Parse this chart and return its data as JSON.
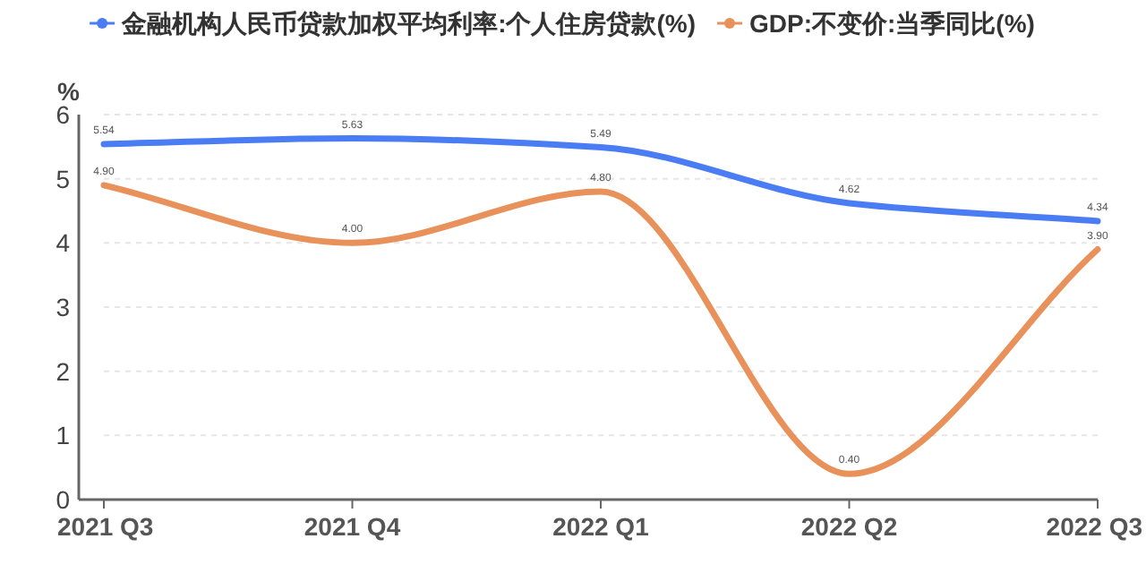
{
  "chart_data": {
    "type": "line",
    "ylabel": "%",
    "categories": [
      "2021 Q3",
      "2021 Q4",
      "2022 Q1",
      "2022 Q2",
      "2022 Q3"
    ],
    "series": [
      {
        "name": "金融机构人民币贷款加权平均利率:个人住房贷款(%)",
        "color": "#4a7cf4",
        "values": [
          5.54,
          5.63,
          5.49,
          4.62,
          4.34
        ],
        "value_labels": [
          "5.54",
          "5.63",
          "5.49",
          "4.62",
          "4.34"
        ]
      },
      {
        "name": "GDP:不变价:当季同比(%)",
        "color": "#e8915a",
        "values": [
          4.9,
          4.0,
          4.8,
          0.4,
          3.9
        ],
        "value_labels": [
          "4.90",
          "4.00",
          "4.80",
          "0.40",
          "3.90"
        ]
      }
    ],
    "ylim": [
      0,
      6
    ],
    "yticks": [
      0,
      1,
      2,
      3,
      4,
      5,
      6
    ],
    "grid": "y",
    "legend": "top"
  }
}
